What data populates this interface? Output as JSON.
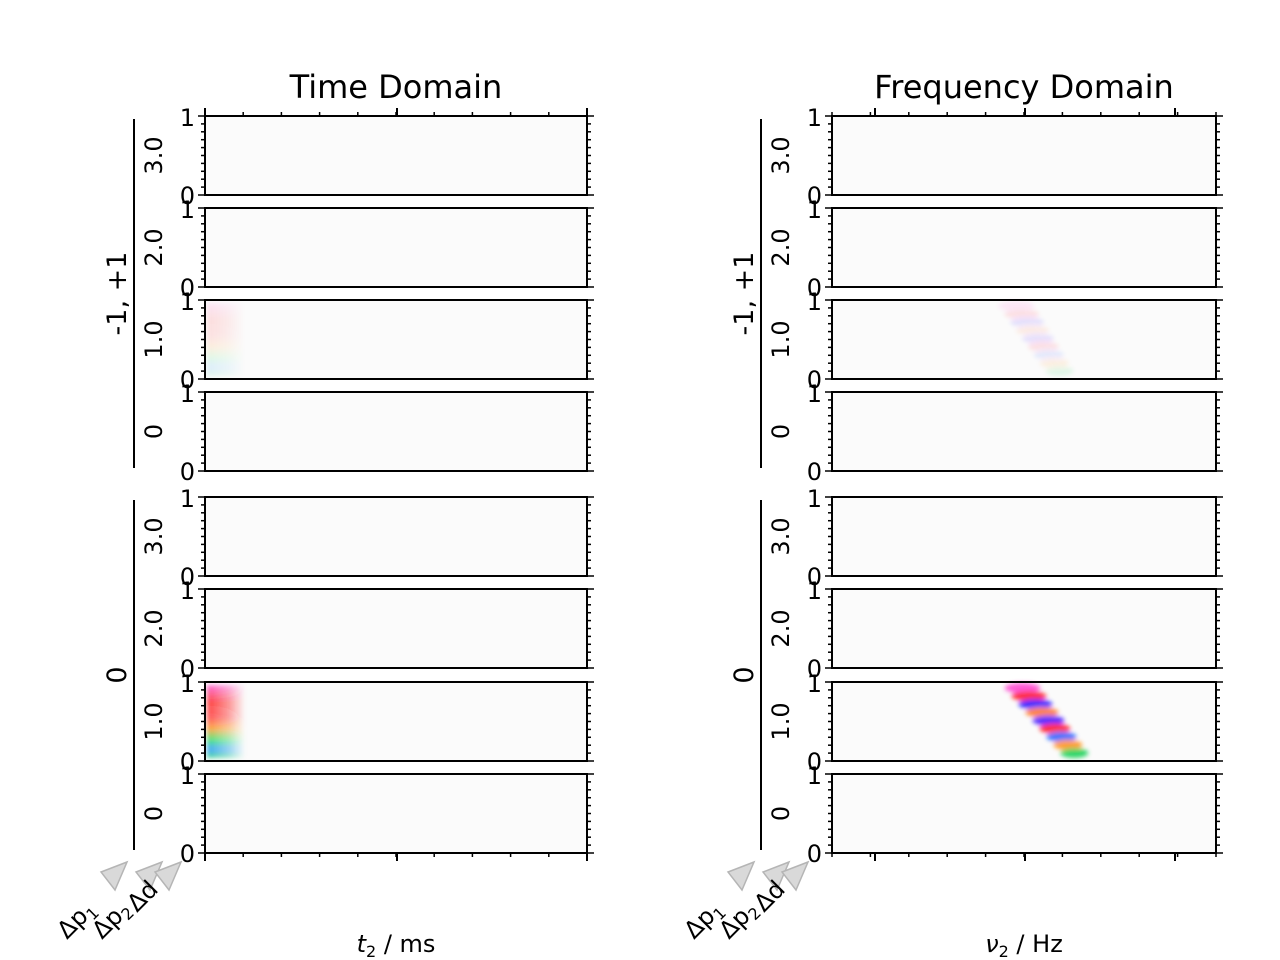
{
  "chart_data": [
    {
      "type": "heatmap",
      "title": "Time Domain",
      "xlabel": {
        "symbol": "t",
        "sub": "2",
        "unit": " / ms"
      },
      "colormap": "phase-colored intensity on white",
      "grid": false,
      "coherence_groups": [
        {
          "label": "-1, +1",
          "rows": [
            {
              "label": "3.0",
              "ytick_top": "1",
              "ytick_bottom": "0"
            },
            {
              "label": "2.0",
              "ytick_top": "1",
              "ytick_bottom": "0"
            },
            {
              "label": "1.0",
              "ytick_top": "1",
              "ytick_bottom": "0"
            },
            {
              "label": "0",
              "ytick_top": "1",
              "ytick_bottom": "0"
            }
          ]
        },
        {
          "label": "0",
          "rows": [
            {
              "label": "3.0",
              "ytick_top": "1",
              "ytick_bottom": "0"
            },
            {
              "label": "2.0",
              "ytick_top": "1",
              "ytick_bottom": "0"
            },
            {
              "label": "1.0",
              "ytick_top": "1",
              "ytick_bottom": "0"
            },
            {
              "label": "0",
              "ytick_top": "1",
              "ytick_bottom": "0"
            }
          ]
        }
      ],
      "signal_blobs": [
        {
          "group": 1,
          "row": 2,
          "x_frac": [
            0.0,
            0.1
          ],
          "strength": 0.75
        },
        {
          "group": 0,
          "row": 2,
          "x_frac": [
            0.0,
            0.1
          ],
          "strength": 0.12
        }
      ],
      "dim_labels": [
        "Δp",
        "Δp",
        "Δd"
      ],
      "dim_label_subs": [
        "1",
        "2",
        ""
      ]
    },
    {
      "type": "heatmap",
      "title": "Frequency Domain",
      "xlabel": {
        "symbol": "ν",
        "sub": "2",
        "unit": " / Hz"
      },
      "colormap": "phase-colored intensity on white",
      "grid": false,
      "coherence_groups": [
        {
          "label": "-1, +1",
          "rows": [
            {
              "label": "3.0",
              "ytick_top": "1",
              "ytick_bottom": "0"
            },
            {
              "label": "2.0",
              "ytick_top": "1",
              "ytick_bottom": "0"
            },
            {
              "label": "1.0",
              "ytick_top": "1",
              "ytick_bottom": "0"
            },
            {
              "label": "0",
              "ytick_top": "1",
              "ytick_bottom": "0"
            }
          ]
        },
        {
          "label": "0",
          "rows": [
            {
              "label": "3.0",
              "ytick_top": "1",
              "ytick_bottom": "0"
            },
            {
              "label": "2.0",
              "ytick_top": "1",
              "ytick_bottom": "0"
            },
            {
              "label": "1.0",
              "ytick_top": "1",
              "ytick_bottom": "0"
            },
            {
              "label": "0",
              "ytick_top": "1",
              "ytick_bottom": "0"
            }
          ]
        }
      ],
      "signal_blobs": [
        {
          "group": 1,
          "row": 2,
          "x_frac": [
            0.4,
            0.7
          ],
          "strength": 0.8
        },
        {
          "group": 0,
          "row": 2,
          "x_frac": [
            0.4,
            0.65
          ],
          "strength": 0.1
        }
      ],
      "dim_labels": [
        "Δp",
        "Δp",
        "Δd"
      ],
      "dim_label_subs": [
        "1",
        "2",
        ""
      ]
    }
  ]
}
